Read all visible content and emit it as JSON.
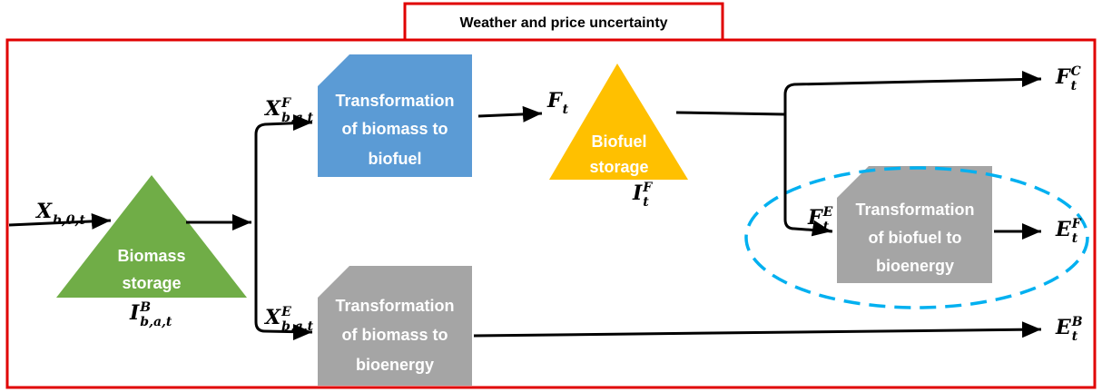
{
  "title": "Weather and price uncertainty",
  "nodes": [
    {
      "id": "biomass-storage",
      "lines": [
        "Biomass",
        "storage"
      ]
    },
    {
      "id": "biomass-to-biofuel",
      "lines": [
        "Transformation",
        "of biomass to",
        "biofuel"
      ]
    },
    {
      "id": "biomass-to-bioenergy",
      "lines": [
        "Transformation",
        "of biomass to",
        "bioenergy"
      ]
    },
    {
      "id": "biofuel-storage",
      "lines": [
        "Biofuel",
        "storage"
      ]
    },
    {
      "id": "biofuel-to-bioenergy",
      "lines": [
        "Transformation",
        "of biofuel to",
        "bioenergy"
      ]
    }
  ],
  "labels": [
    {
      "base": "X",
      "sub": "b,0,t"
    },
    {
      "base": "I",
      "sup": "B",
      "sub": "b,a,t"
    },
    {
      "base": "X",
      "sup": "F",
      "sub": "b,a,t"
    },
    {
      "base": "X",
      "sup": "E",
      "sub": "b,a,t"
    },
    {
      "base": "F",
      "sub": "t"
    },
    {
      "base": "I",
      "sup": "F",
      "sub": "t"
    },
    {
      "base": "F",
      "sup": "C",
      "sub": "t"
    },
    {
      "base": "F",
      "sup": "E",
      "sub": "t"
    },
    {
      "base": "E",
      "sup": "F",
      "sub": "t"
    },
    {
      "base": "E",
      "sup": "B",
      "sub": "t"
    }
  ]
}
